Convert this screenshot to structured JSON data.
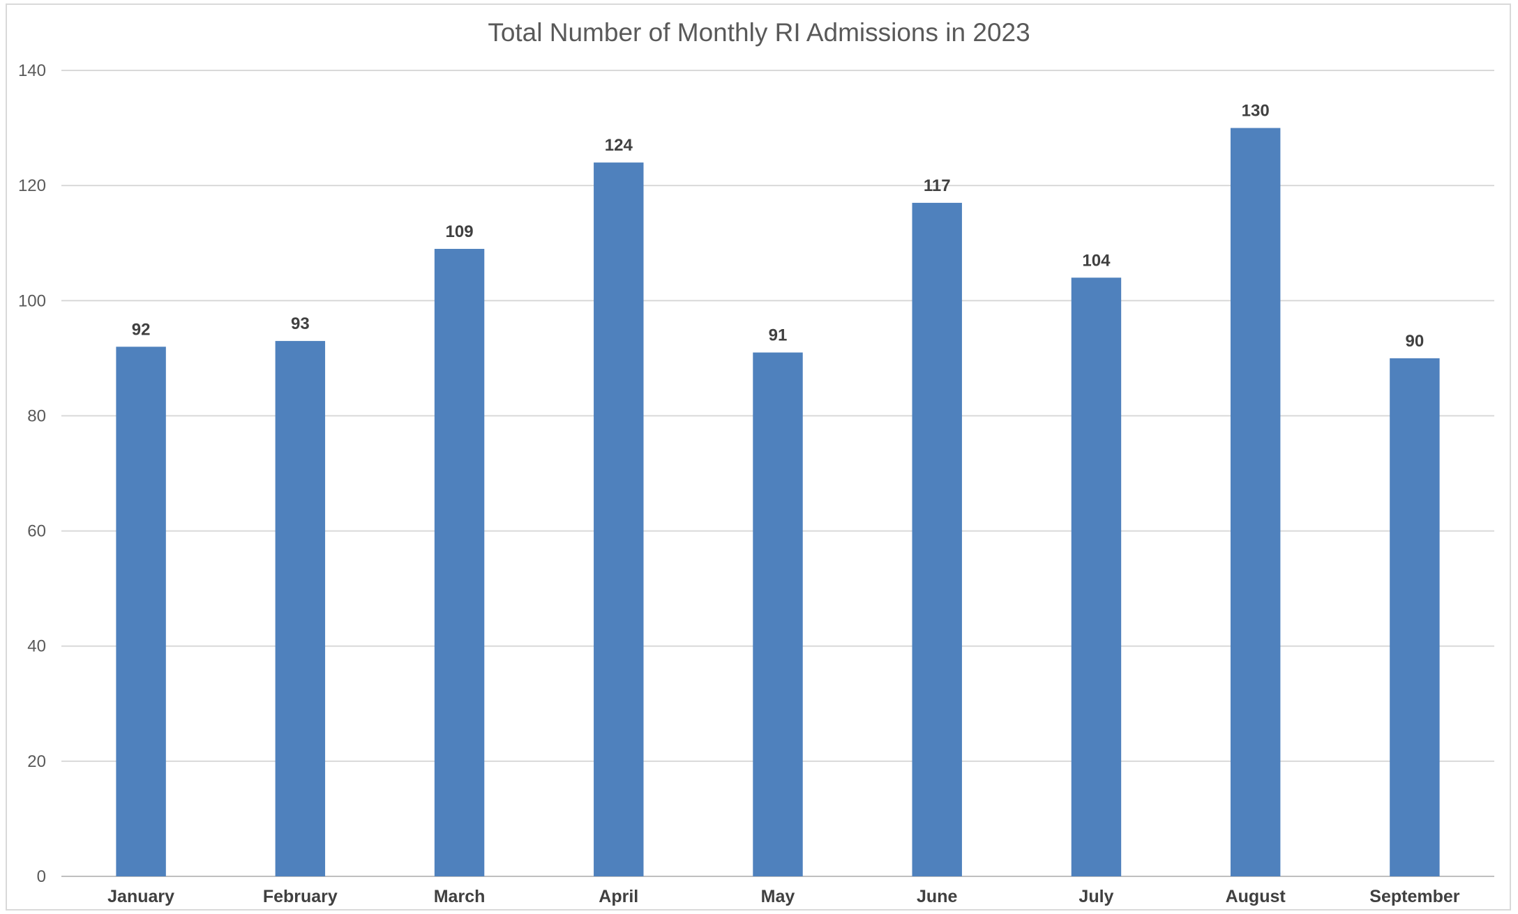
{
  "colors": {
    "bar": "#4f81bd",
    "gridline": "#d9d9d9",
    "text": "#595959",
    "data_label": "#404040"
  },
  "chart_data": {
    "type": "bar",
    "title": "Total Number of Monthly RI Admissions in 2023",
    "xlabel": "",
    "ylabel": "",
    "categories": [
      "January",
      "February",
      "March",
      "April",
      "May",
      "June",
      "July",
      "August",
      "September"
    ],
    "values": [
      92,
      93,
      109,
      124,
      91,
      117,
      104,
      130,
      90
    ],
    "ylim": [
      0,
      140
    ],
    "yticks": [
      0,
      20,
      40,
      60,
      80,
      100,
      120,
      140
    ],
    "grid": true,
    "legend": "none",
    "data_labels": true
  }
}
